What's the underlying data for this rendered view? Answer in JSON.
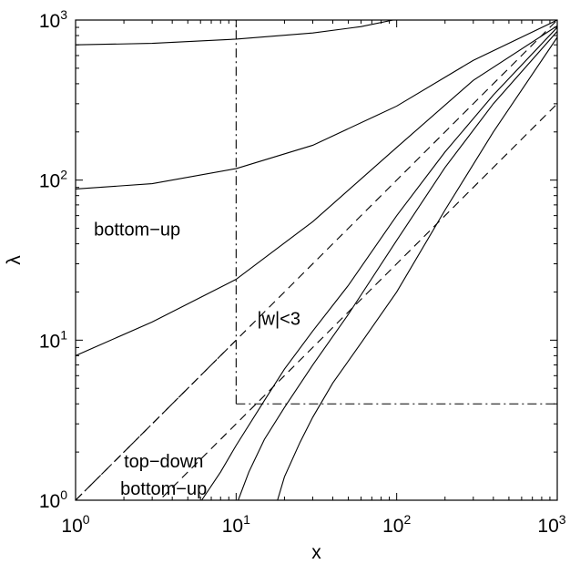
{
  "chart_data": {
    "type": "line",
    "xscale": "log",
    "yscale": "log",
    "xlim": [
      1,
      1000
    ],
    "ylim": [
      1,
      1000
    ],
    "xlabel": "x",
    "ylabel": "λ",
    "x_ticks": [
      1,
      10,
      100,
      1000
    ],
    "x_tick_labels": [
      {
        "base": "10",
        "exp": "0"
      },
      {
        "base": "10",
        "exp": "1"
      },
      {
        "base": "10",
        "exp": "2"
      },
      {
        "base": "10",
        "exp": "3"
      }
    ],
    "y_ticks": [
      1,
      10,
      100,
      1000
    ],
    "y_tick_labels": [
      {
        "base": "10",
        "exp": "0"
      },
      {
        "base": "10",
        "exp": "1"
      },
      {
        "base": "10",
        "exp": "2"
      },
      {
        "base": "10",
        "exp": "3"
      }
    ],
    "grid": false,
    "series": [
      {
        "style": "solid",
        "x": [
          1,
          3,
          10,
          30,
          60,
          95
        ],
        "y": [
          700,
          715,
          760,
          830,
          910,
          1000
        ]
      },
      {
        "style": "solid",
        "x": [
          1,
          3,
          10,
          30,
          100,
          300,
          1000
        ],
        "y": [
          88,
          95,
          118,
          165,
          290,
          560,
          1000
        ]
      },
      {
        "style": "solid",
        "x": [
          1,
          3,
          10,
          30,
          100,
          300,
          1000
        ],
        "y": [
          8,
          13,
          24,
          55,
          160,
          420,
          920
        ]
      },
      {
        "style": "solid",
        "x": [
          6.1,
          8,
          10,
          15,
          20,
          30,
          50,
          100,
          200,
          400,
          1000
        ],
        "y": [
          1,
          1.5,
          2.2,
          4.2,
          6.6,
          11.4,
          22,
          60,
          150,
          340,
          900
        ]
      },
      {
        "style": "solid",
        "x": [
          10.3,
          12,
          15,
          20,
          30,
          50,
          100,
          200,
          400,
          1000
        ],
        "y": [
          1,
          1.5,
          2.4,
          3.8,
          7,
          14.5,
          42,
          120,
          300,
          850
        ]
      },
      {
        "style": "solid",
        "x": [
          18.1,
          20,
          25,
          30,
          40,
          60,
          100,
          200,
          400,
          1000
        ],
        "y": [
          1,
          1.4,
          2.3,
          3.3,
          5.4,
          9.6,
          20,
          65,
          200,
          780
        ]
      },
      {
        "style": "dashed",
        "x": [
          1,
          1000
        ],
        "y": [
          1,
          1000
        ]
      },
      {
        "style": "dashed",
        "x": [
          1,
          1000
        ],
        "y": [
          0.3,
          300
        ]
      },
      {
        "style": "dashdot",
        "x": [
          10,
          10
        ],
        "y": [
          4,
          1000
        ]
      },
      {
        "style": "dashdot",
        "x": [
          10,
          1000
        ],
        "y": [
          4,
          4
        ]
      },
      {
        "style": "dashdot",
        "x": [
          1,
          10
        ],
        "y": [
          1,
          10
        ]
      }
    ],
    "annotations": [
      {
        "text": "bottom−up",
        "x": 1.3,
        "y": 45
      },
      {
        "text": "|w|<3",
        "x": 13.5,
        "y": 12.5
      },
      {
        "text": "top−down",
        "x": 2.0,
        "y": 1.6
      },
      {
        "text": "bottom−up",
        "x": 1.9,
        "y": 1.08
      }
    ]
  }
}
